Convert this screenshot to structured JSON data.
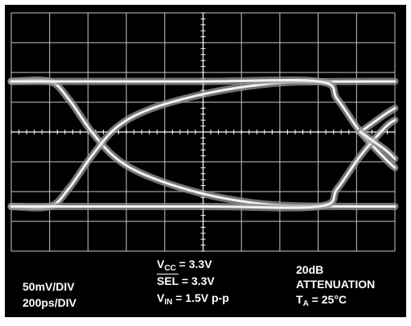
{
  "chart_data": {
    "type": "line",
    "title": "",
    "xlabel": "",
    "ylabel": "",
    "grid": true,
    "x_divisions": 10,
    "y_divisions": 8,
    "x_unit": "ps",
    "y_unit": "mV",
    "xlim": [
      0,
      2000
    ],
    "ylim": [
      -200,
      200
    ],
    "series": [
      {
        "x": [
          0,
          200,
          300,
          420,
          550,
          720,
          980,
          1240,
          1500,
          2000
        ],
        "y": [
          85,
          85,
          55,
          0,
          -45,
          -75,
          -102,
          -118,
          -124,
          -125
        ]
      },
      {
        "x": [
          0,
          200,
          300,
          420,
          550,
          720,
          980,
          1240,
          1500,
          2000
        ],
        "y": [
          -125,
          -125,
          -95,
          -40,
          8,
          38,
          62,
          77,
          84,
          85
        ]
      },
      {
        "x": [
          0,
          1000,
          1600,
          1700,
          1820,
          1950,
          2000
        ],
        "y": [
          85,
          85,
          85,
          55,
          0,
          -45,
          -60
        ]
      },
      {
        "x": [
          0,
          1000,
          1600,
          1700,
          1820,
          1950,
          2000
        ],
        "y": [
          -125,
          -125,
          -125,
          -95,
          -40,
          8,
          20
        ]
      },
      {
        "x": [
          1820,
          1950,
          2000
        ],
        "y": [
          0,
          30,
          40
        ]
      },
      {
        "x": [
          1820,
          1950,
          2000
        ],
        "y": [
          0,
          -30,
          -45
        ]
      }
    ]
  },
  "annotations": {
    "scale_v": "50mV/DIV",
    "scale_h": "200ps/DIV",
    "vcc_main": "V",
    "vcc_sub": "CC",
    "vcc_rest": " = 3.3V",
    "sel_main": "SEL",
    "sel_rest": " = 3.3V",
    "vin_main": "V",
    "vin_sub": "IN",
    "vin_rest": " = 1.5V p-p",
    "atten_1": "20dB",
    "atten_2": "ATTENUATION",
    "ta_main": "T",
    "ta_sub": "A",
    "ta_rest": " = 25°C"
  }
}
